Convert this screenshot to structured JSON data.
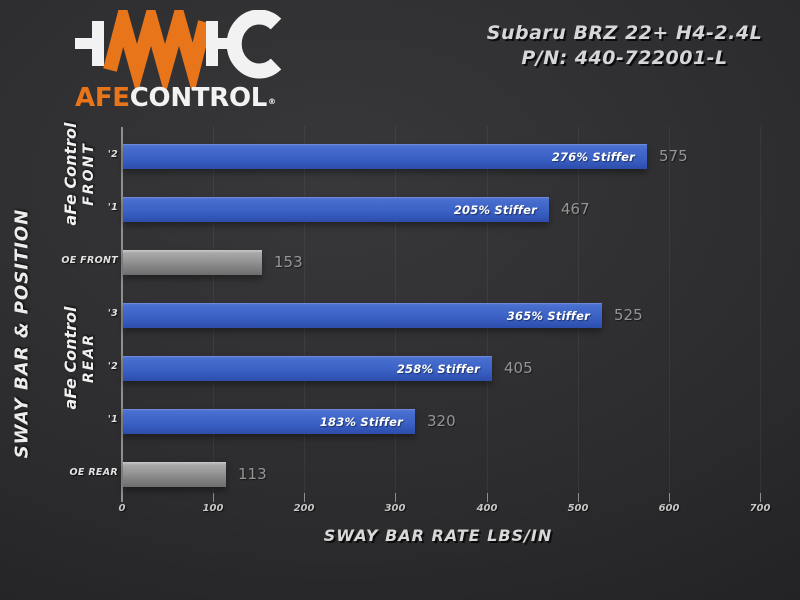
{
  "logo": {
    "brand_orange": "AFE",
    "brand_white": "CONTROL",
    "registered": "®",
    "accent_color": "#e8751a"
  },
  "header": {
    "title_line1": "Subaru BRZ 22+ H4-2.4L",
    "title_line2": "P/N: 440-722001-L"
  },
  "chart_data": {
    "type": "bar",
    "orientation": "horizontal",
    "xlabel": "SWAY BAR RATE LBS/IN",
    "ylabel": "SWAY BAR & POSITION",
    "xlim": [
      0,
      700
    ],
    "xticks": [
      0,
      100,
      200,
      300,
      400,
      500,
      600,
      700
    ],
    "grid": "vertical",
    "groups": {
      "front": {
        "line1": "aFe Control",
        "line2": "FRONT"
      },
      "rear": {
        "line1": "aFe Control",
        "line2": "REAR"
      }
    },
    "bars": [
      {
        "tick": "'2",
        "value": 575,
        "label": "276% Stiffer",
        "series": "aFe"
      },
      {
        "tick": "'1",
        "value": 467,
        "label": "205% Stiffer",
        "series": "aFe"
      },
      {
        "tick": "OE FRONT",
        "value": 153,
        "label": "",
        "series": "OE"
      },
      {
        "tick": "'3",
        "value": 525,
        "label": "365% Stiffer",
        "series": "aFe"
      },
      {
        "tick": "'2",
        "value": 405,
        "label": "258% Stiffer",
        "series": "aFe"
      },
      {
        "tick": "'1",
        "value": 320,
        "label": "183% Stiffer",
        "series": "aFe"
      },
      {
        "tick": "OE REAR",
        "value": 113,
        "label": "",
        "series": "OE"
      }
    ],
    "colors": {
      "aFe_bar": "#3e62c4",
      "OE_bar": "#8f8f8f",
      "value_label": "#959595"
    }
  }
}
